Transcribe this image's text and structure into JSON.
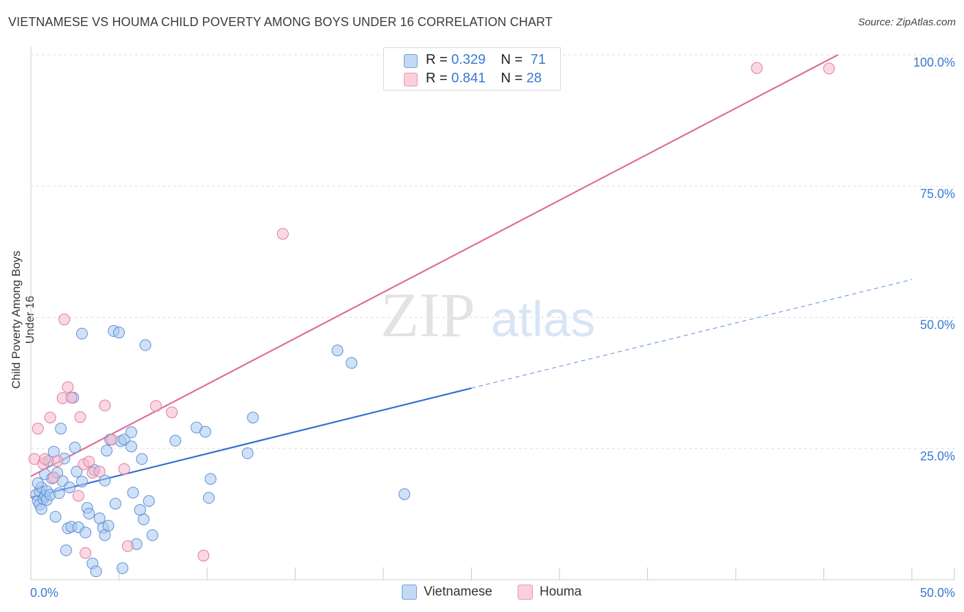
{
  "header": {
    "title": "VIETNAMESE VS HOUMA CHILD POVERTY AMONG BOYS UNDER 16 CORRELATION CHART",
    "source": "Source: ZipAtlas.com"
  },
  "watermark": {
    "zip": "ZIP",
    "atlas": "atlas"
  },
  "legend": {
    "rows": [
      {
        "r_label": "R =",
        "r_value": "0.329",
        "n_label": "N =",
        "n_value": "71",
        "color": "#a9c8f0"
      },
      {
        "r_label": "R =",
        "r_value": "0.841",
        "n_label": "N =",
        "n_value": "28",
        "color": "#f6b8cc"
      }
    ]
  },
  "bottom_legend": [
    {
      "label": "Vietnamese",
      "color": "#a9c8f0"
    },
    {
      "label": "Houma",
      "color": "#f6b8cc"
    }
  ],
  "chart_data": {
    "type": "scatter",
    "title": "VIETNAMESE VS HOUMA CHILD POVERTY AMONG BOYS UNDER 16 CORRELATION CHART",
    "xlabel": "",
    "ylabel": "Child Poverty Among Boys Under 16",
    "xlim": [
      0,
      50
    ],
    "ylim": [
      0,
      100
    ],
    "x_tick_labels": [
      "0.0%",
      "50.0%"
    ],
    "y_tick_labels": [
      "25.0%",
      "50.0%",
      "75.0%",
      "100.0%"
    ],
    "y_ticks": [
      25,
      50,
      75,
      100
    ],
    "x_minor_ticks": [
      0,
      5,
      10,
      15,
      20,
      25,
      30,
      35,
      40,
      45,
      50
    ],
    "grid": true,
    "series": [
      {
        "name": "Vietnamese",
        "color": "#a9c8f0",
        "stroke": "#5a8fd6",
        "trend": {
          "x0": 0,
          "y0": 15.7,
          "x1": 25,
          "y1": 36.5,
          "dash_to_x": 50,
          "dash_to_y": 57.2,
          "color": "#2e6fd0"
        },
        "points": [
          [
            0.3,
            16.2
          ],
          [
            0.4,
            15.0
          ],
          [
            0.5,
            14.3
          ],
          [
            0.5,
            16.8
          ],
          [
            0.6,
            13.5
          ],
          [
            0.6,
            17.6
          ],
          [
            0.7,
            15.4
          ],
          [
            0.8,
            20.1
          ],
          [
            0.8,
            16.0
          ],
          [
            0.9,
            15.2
          ],
          [
            0.9,
            16.9
          ],
          [
            1.0,
            22.6
          ],
          [
            1.1,
            16.2
          ],
          [
            1.2,
            19.3
          ],
          [
            1.3,
            24.4
          ],
          [
            1.4,
            12.0
          ],
          [
            1.5,
            20.4
          ],
          [
            1.6,
            16.5
          ],
          [
            1.7,
            28.8
          ],
          [
            1.8,
            18.8
          ],
          [
            1.9,
            23.1
          ],
          [
            2.0,
            5.6
          ],
          [
            2.1,
            9.8
          ],
          [
            2.2,
            17.6
          ],
          [
            2.3,
            10.1
          ],
          [
            2.4,
            34.7
          ],
          [
            2.5,
            25.2
          ],
          [
            2.6,
            20.6
          ],
          [
            2.7,
            10.0
          ],
          [
            2.9,
            46.9
          ],
          [
            2.9,
            18.7
          ],
          [
            3.1,
            9.0
          ],
          [
            3.2,
            13.7
          ],
          [
            3.3,
            12.6
          ],
          [
            3.5,
            3.1
          ],
          [
            3.6,
            20.9
          ],
          [
            3.7,
            1.6
          ],
          [
            3.9,
            11.7
          ],
          [
            4.1,
            9.9
          ],
          [
            4.2,
            8.5
          ],
          [
            4.2,
            18.9
          ],
          [
            4.3,
            24.6
          ],
          [
            4.4,
            10.3
          ],
          [
            4.5,
            26.7
          ],
          [
            4.7,
            47.4
          ],
          [
            4.8,
            14.5
          ],
          [
            5.0,
            47.1
          ],
          [
            5.1,
            26.4
          ],
          [
            5.2,
            2.2
          ],
          [
            5.3,
            26.7
          ],
          [
            5.7,
            25.4
          ],
          [
            5.7,
            28.1
          ],
          [
            5.8,
            16.6
          ],
          [
            6.0,
            6.8
          ],
          [
            6.2,
            13.3
          ],
          [
            6.3,
            23.0
          ],
          [
            6.4,
            11.5
          ],
          [
            6.5,
            44.7
          ],
          [
            6.7,
            15.0
          ],
          [
            6.9,
            8.5
          ],
          [
            8.2,
            26.5
          ],
          [
            9.4,
            29.0
          ],
          [
            9.9,
            28.2
          ],
          [
            10.1,
            15.6
          ],
          [
            10.2,
            19.2
          ],
          [
            12.3,
            24.1
          ],
          [
            12.6,
            30.9
          ],
          [
            17.4,
            43.7
          ],
          [
            18.2,
            41.3
          ],
          [
            21.2,
            16.3
          ],
          [
            0.4,
            18.4
          ]
        ]
      },
      {
        "name": "Houma",
        "color": "#f6b8cc",
        "stroke": "#e07a9e",
        "trend": {
          "x0": 0,
          "y0": 19.7,
          "x1": 45.8,
          "y1": 100.0,
          "color": "#e06b94"
        },
        "points": [
          [
            0.2,
            23.0
          ],
          [
            0.4,
            28.8
          ],
          [
            0.7,
            22.1
          ],
          [
            0.8,
            23.0
          ],
          [
            1.1,
            30.9
          ],
          [
            1.3,
            19.5
          ],
          [
            1.5,
            22.6
          ],
          [
            1.8,
            34.6
          ],
          [
            1.9,
            49.6
          ],
          [
            2.1,
            36.7
          ],
          [
            2.3,
            34.7
          ],
          [
            2.7,
            16.0
          ],
          [
            2.8,
            31.0
          ],
          [
            3.0,
            22.0
          ],
          [
            3.1,
            5.1
          ],
          [
            3.3,
            22.5
          ],
          [
            3.5,
            20.4
          ],
          [
            3.9,
            20.6
          ],
          [
            4.2,
            33.2
          ],
          [
            4.6,
            26.7
          ],
          [
            5.3,
            21.1
          ],
          [
            5.5,
            6.4
          ],
          [
            7.1,
            33.1
          ],
          [
            8.0,
            31.9
          ],
          [
            9.8,
            4.6
          ],
          [
            14.3,
            65.9
          ],
          [
            41.2,
            97.5
          ],
          [
            45.3,
            97.4
          ]
        ]
      }
    ]
  }
}
